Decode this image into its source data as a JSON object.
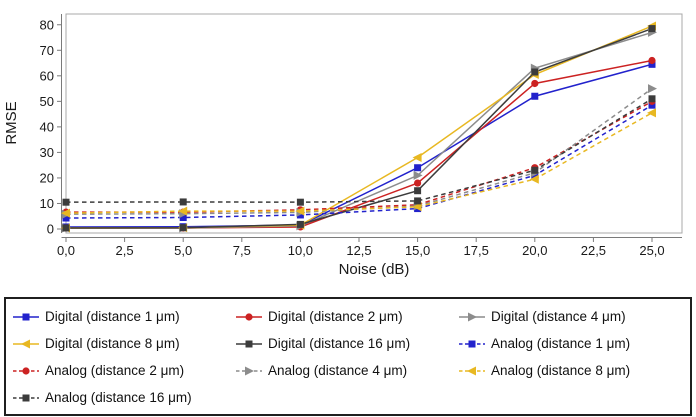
{
  "chart_data": {
    "type": "line",
    "title": "",
    "xlabel": "Noise (dB)",
    "ylabel": "RMSE",
    "x": [
      0,
      5,
      10,
      15,
      20,
      25
    ],
    "xlim": [
      0,
      26.3
    ],
    "ylim": [
      0,
      84
    ],
    "grid": false,
    "legend_position": "bottom",
    "x_ticks": [
      {
        "v": 0,
        "label": "0,0"
      },
      {
        "v": 2.5,
        "label": "2,5"
      },
      {
        "v": 5,
        "label": "5,0"
      },
      {
        "v": 7.5,
        "label": "7,5"
      },
      {
        "v": 10,
        "label": "10,0"
      },
      {
        "v": 12.5,
        "label": "12,5"
      },
      {
        "v": 15,
        "label": "15,0"
      },
      {
        "v": 17.5,
        "label": "17,5"
      },
      {
        "v": 20,
        "label": "20,0"
      },
      {
        "v": 22.5,
        "label": "22,5"
      },
      {
        "v": 25,
        "label": "25,0"
      }
    ],
    "y_ticks": [
      {
        "v": 0,
        "label": "0"
      },
      {
        "v": 10,
        "label": "10"
      },
      {
        "v": 20,
        "label": "20"
      },
      {
        "v": 30,
        "label": "30"
      },
      {
        "v": 40,
        "label": "40"
      },
      {
        "v": 50,
        "label": "50"
      },
      {
        "v": 60,
        "label": "60"
      },
      {
        "v": 70,
        "label": "70"
      },
      {
        "v": 80,
        "label": "80"
      }
    ],
    "series": [
      {
        "name": "Digital (distance 1 μm)",
        "color": "#2222cc",
        "line": "solid",
        "marker": "square",
        "values": [
          0.8,
          0.9,
          1.5,
          24,
          52,
          64.5
        ]
      },
      {
        "name": "Digital (distance 2 μm)",
        "color": "#cc2222",
        "line": "solid",
        "marker": "circle",
        "values": [
          0.4,
          0.4,
          0.8,
          18,
          57,
          66
        ]
      },
      {
        "name": "Digital (distance 4 μm)",
        "color": "#8c8c8c",
        "line": "solid",
        "marker": "tri-right",
        "values": [
          0.4,
          0.4,
          1.2,
          21,
          63,
          77
        ]
      },
      {
        "name": "Digital (distance 8 μm)",
        "color": "#e8b822",
        "line": "solid",
        "marker": "tri-left",
        "values": [
          0.4,
          0.5,
          1.5,
          28,
          60.5,
          79.5
        ]
      },
      {
        "name": "Digital (distance 16 μm)",
        "color": "#3c3c3c",
        "line": "solid",
        "marker": "square",
        "values": [
          0.4,
          0.5,
          1.8,
          15,
          61.5,
          78.5
        ]
      },
      {
        "name": "Analog (distance 1 μm)",
        "color": "#2222cc",
        "line": "dashed",
        "marker": "square",
        "values": [
          4.3,
          4.5,
          5.5,
          8,
          21,
          48.5
        ]
      },
      {
        "name": "Analog (distance 2 μm)",
        "color": "#cc2222",
        "line": "dashed",
        "marker": "circle",
        "values": [
          6.6,
          6.6,
          7.5,
          9.5,
          24,
          50
        ]
      },
      {
        "name": "Analog (distance 4 μm)",
        "color": "#8c8c8c",
        "line": "dashed",
        "marker": "tri-right",
        "values": [
          5.8,
          6,
          6.5,
          9,
          22,
          55
        ]
      },
      {
        "name": "Analog (distance 8 μm)",
        "color": "#e8b822",
        "line": "dashed",
        "marker": "tri-left",
        "values": [
          6.2,
          7,
          7,
          8.7,
          19.5,
          45.5
        ]
      },
      {
        "name": "Analog (distance 16 μm)",
        "color": "#3c3c3c",
        "line": "dashed",
        "marker": "square",
        "values": [
          10.5,
          10.6,
          10.5,
          11,
          23,
          51
        ]
      }
    ],
    "legend_columns": 3
  },
  "style_colors": {
    "plot_frame": "#a8a8a8",
    "axis_line": "#7a7a7a",
    "tick_text": "#1a1a1a",
    "legend_border": "#1f1f1f",
    "background": "#ffffff"
  }
}
